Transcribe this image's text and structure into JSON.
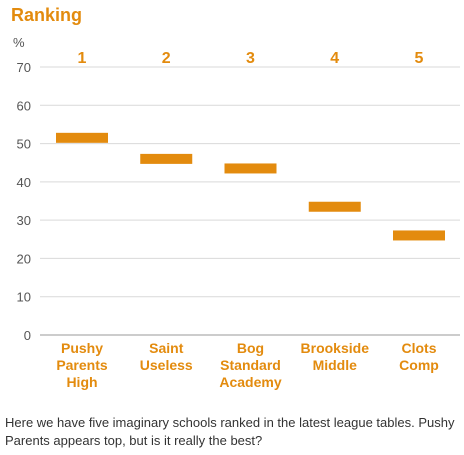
{
  "chart_data": {
    "type": "range-bar",
    "title": "Ranking",
    "ylabel": "%",
    "ylim": [
      0,
      70
    ],
    "yticks": [
      0,
      10,
      20,
      30,
      40,
      50,
      60,
      70
    ],
    "grid": true,
    "color": "#e38b0e",
    "ranks": [
      "1",
      "2",
      "3",
      "4",
      "5"
    ],
    "categories": [
      [
        "Pushy",
        "Parents",
        "High"
      ],
      [
        "Saint",
        "Useless"
      ],
      [
        "Bog",
        "Standard",
        "Academy"
      ],
      [
        "Brookside",
        "Middle"
      ],
      [
        "Clots",
        "Comp"
      ]
    ],
    "values": [
      51.5,
      46,
      43.5,
      33.5,
      26
    ]
  },
  "caption": "Here we have five imaginary schools ranked in the latest league tables. Pushy Parents appears top, but is it really the best?"
}
